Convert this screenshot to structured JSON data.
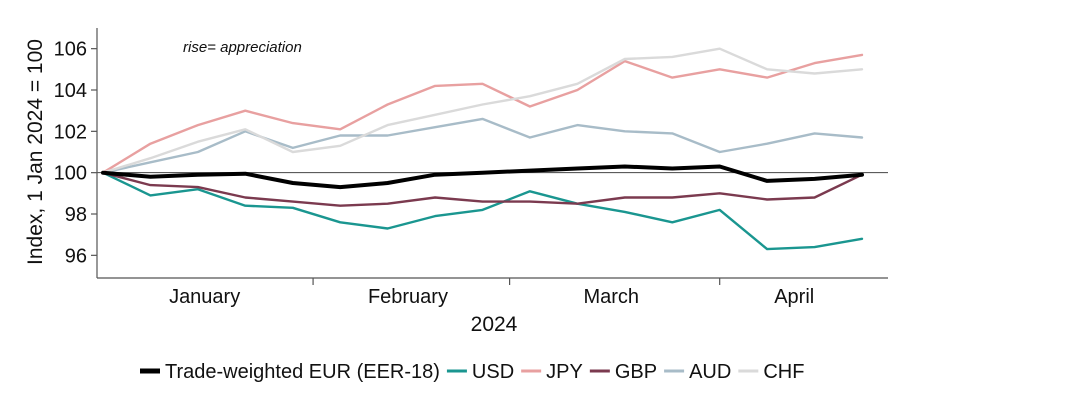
{
  "chart_data": {
    "type": "line",
    "annotation": "rise= appreciation",
    "ylabel": "Index, 1 Jan 2024 = 100",
    "xlabel": "2024",
    "ylim": [
      95,
      107
    ],
    "y_ticks": [
      96,
      98,
      100,
      102,
      104,
      106
    ],
    "reference_line": 100,
    "grid": false,
    "legend_position": "bottom",
    "x": [
      "2024-01-01",
      "2024-01-08",
      "2024-01-15",
      "2024-01-22",
      "2024-01-29",
      "2024-02-05",
      "2024-02-12",
      "2024-02-19",
      "2024-02-26",
      "2024-03-04",
      "2024-03-11",
      "2024-03-18",
      "2024-03-25",
      "2024-04-01",
      "2024-04-08",
      "2024-04-15",
      "2024-04-22"
    ],
    "month_labels": [
      {
        "label": "January",
        "date": "2024-01-16"
      },
      {
        "label": "February",
        "date": "2024-02-15"
      },
      {
        "label": "March",
        "date": "2024-03-16"
      },
      {
        "label": "April",
        "date": "2024-04-12"
      }
    ],
    "month_boundaries": [
      "2024-02-01",
      "2024-03-01",
      "2024-04-01"
    ],
    "series": [
      {
        "name": "USD",
        "color": "#1a9690",
        "width": 2.4,
        "values": [
          100.0,
          98.9,
          99.2,
          98.4,
          98.3,
          97.6,
          97.3,
          97.9,
          98.2,
          99.1,
          98.5,
          98.1,
          97.6,
          98.2,
          96.3,
          96.4,
          96.8
        ]
      },
      {
        "name": "JPY",
        "color": "#e8a0a0",
        "width": 2.4,
        "values": [
          100.0,
          101.4,
          102.3,
          103.0,
          102.4,
          102.1,
          103.3,
          104.2,
          104.3,
          103.2,
          104.0,
          105.4,
          104.6,
          105.0,
          104.6,
          105.3,
          105.7
        ]
      },
      {
        "name": "GBP",
        "color": "#7b3a4f",
        "width": 2.4,
        "values": [
          100.0,
          99.4,
          99.3,
          98.8,
          98.6,
          98.4,
          98.5,
          98.8,
          98.6,
          98.6,
          98.5,
          98.8,
          98.8,
          99.0,
          98.7,
          98.8,
          99.9
        ]
      },
      {
        "name": "AUD",
        "color": "#a8bcc8",
        "width": 2.4,
        "values": [
          100.0,
          100.5,
          101.0,
          102.0,
          101.2,
          101.8,
          101.8,
          102.2,
          102.6,
          101.7,
          102.3,
          102.0,
          101.9,
          101.0,
          101.4,
          101.9,
          101.7
        ]
      },
      {
        "name": "CHF",
        "color": "#dadada",
        "width": 2.4,
        "values": [
          100.0,
          100.7,
          101.5,
          102.1,
          101.0,
          101.3,
          102.3,
          102.8,
          103.3,
          103.7,
          104.3,
          105.5,
          105.6,
          106.0,
          105.0,
          104.8,
          105.0
        ]
      },
      {
        "name": "Trade-weighted EUR (EER-18)",
        "color": "#000000",
        "width": 4,
        "values": [
          100.0,
          99.8,
          99.9,
          99.95,
          99.5,
          99.3,
          99.5,
          99.9,
          100.0,
          100.1,
          100.2,
          100.3,
          100.2,
          100.3,
          99.6,
          99.7,
          99.9
        ]
      }
    ],
    "legend": [
      {
        "name": "Trade-weighted EUR (EER-18)",
        "color": "#000000"
      },
      {
        "name": "USD",
        "color": "#1a9690"
      },
      {
        "name": "JPY",
        "color": "#e8a0a0"
      },
      {
        "name": "GBP",
        "color": "#7b3a4f"
      },
      {
        "name": "AUD",
        "color": "#a8bcc8"
      },
      {
        "name": "CHF",
        "color": "#dadada"
      }
    ]
  }
}
